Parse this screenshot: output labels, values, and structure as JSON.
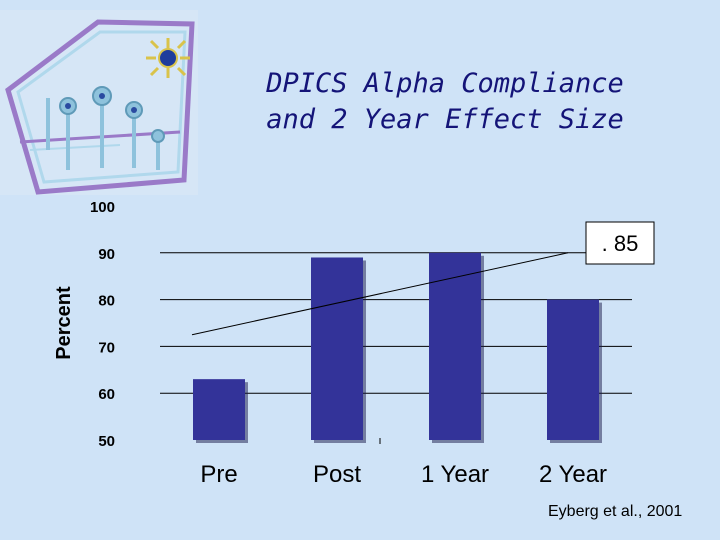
{
  "slide": {
    "title_line1": "DPICS Alpha Compliance",
    "title_line2": "and 2 Year Effect Size",
    "citation": "Eyberg et al., 2001"
  },
  "chart_data": {
    "type": "bar",
    "categories": [
      "Pre",
      "Post",
      "1 Year",
      "2 Year"
    ],
    "values": [
      63,
      89,
      90,
      80
    ],
    "ylabel": "Percent",
    "ylim": [
      50,
      100
    ],
    "yticks": [
      50,
      60,
      70,
      80,
      90,
      100
    ],
    "grid": true,
    "annotation": ". 85",
    "trendline": {
      "from": 72.5,
      "to": 90
    },
    "colors": {
      "bar": "#333399",
      "grid": "#000000"
    }
  }
}
